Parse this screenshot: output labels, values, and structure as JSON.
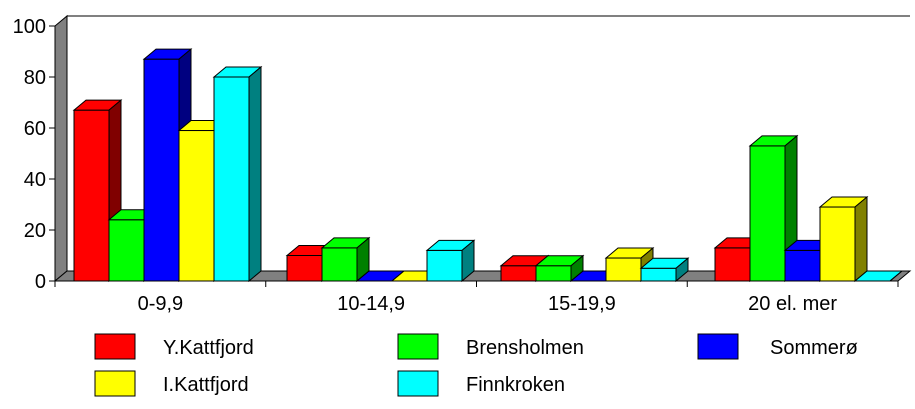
{
  "chart_data": {
    "type": "bar",
    "style": "3d",
    "categories": [
      "0-9,9",
      "10-14,9",
      "15-19,9",
      "20 el. mer"
    ],
    "series": [
      {
        "name": "Y.Kattfjord",
        "color": "#ff0000",
        "values": [
          67,
          10,
          6,
          13
        ]
      },
      {
        "name": "Brensholmen",
        "color": "#00ff00",
        "values": [
          24,
          13,
          6,
          53
        ]
      },
      {
        "name": "Sommerø",
        "color": "#0000ff",
        "values": [
          87,
          0,
          0,
          12
        ]
      },
      {
        "name": "I.Kattfjord",
        "color": "#ffff00",
        "values": [
          59,
          0,
          9,
          29
        ]
      },
      {
        "name": "Finnkroken",
        "color": "#00ffff",
        "values": [
          80,
          12,
          5,
          0
        ]
      }
    ],
    "y_ticks": [
      "0",
      "20",
      "40",
      "60",
      "80",
      "100"
    ],
    "ylim": [
      0,
      100
    ],
    "grid": false,
    "legend_position": "bottom"
  }
}
